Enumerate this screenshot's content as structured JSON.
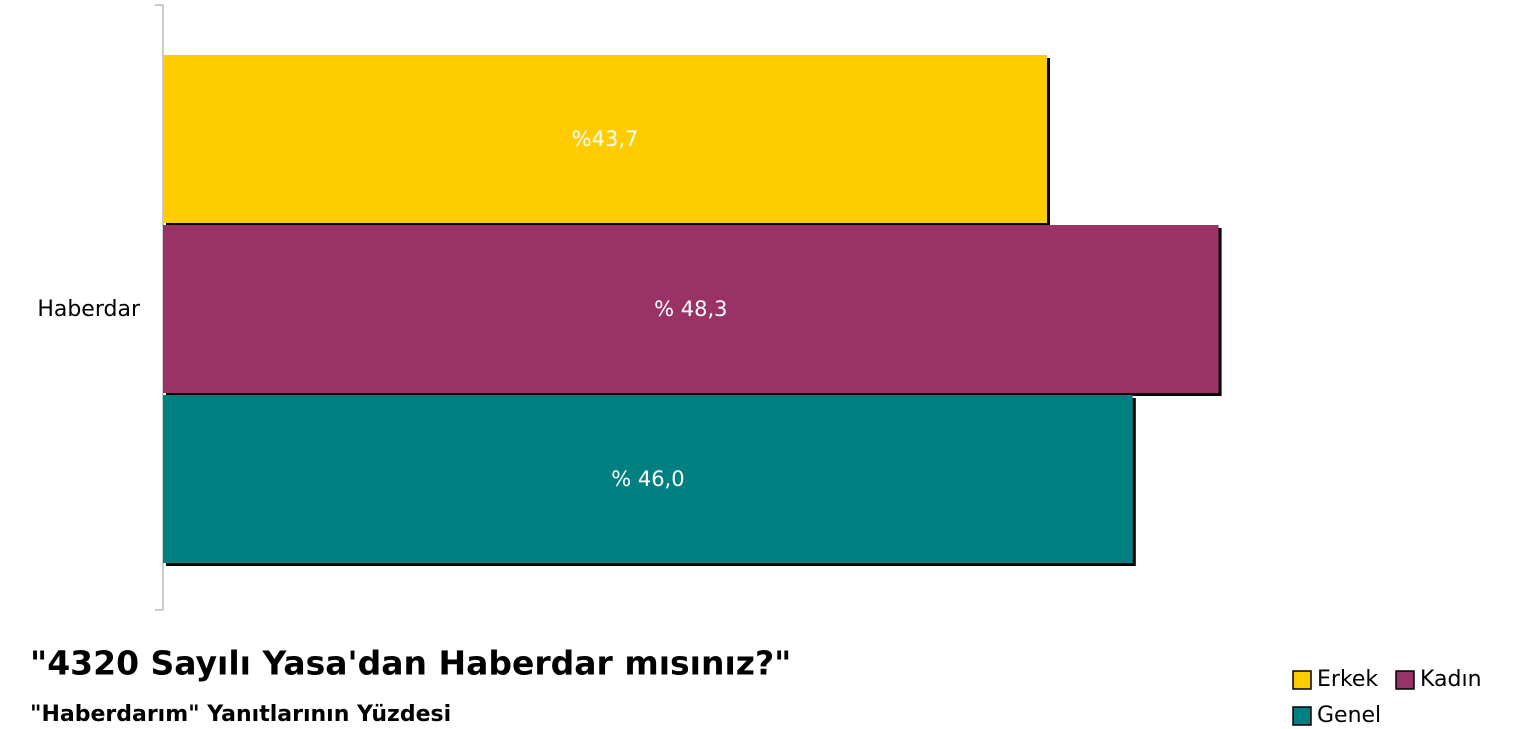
{
  "chart_data": {
    "type": "hbar",
    "title": "\"4320 Sayılı Yasa'dan Haberdar mısınız?\"",
    "subtitle": "\"Haberdarım\" Yanıtlarının Yüzdesi",
    "categories": [
      "Haberdar"
    ],
    "series": [
      {
        "name": "Erkek",
        "color": "#ffcc00",
        "values": [
          43.7
        ],
        "value_labels": [
          "%43,7"
        ]
      },
      {
        "name": "Kadın",
        "color": "#993366",
        "values": [
          48.3
        ],
        "value_labels": [
          "% 48,3"
        ]
      },
      {
        "name": "Genel",
        "color": "#008080",
        "values": [
          46.0
        ],
        "value_labels": [
          "% 46,0"
        ]
      }
    ],
    "xlim": [
      20,
      50
    ],
    "legend": "bottom-right"
  }
}
